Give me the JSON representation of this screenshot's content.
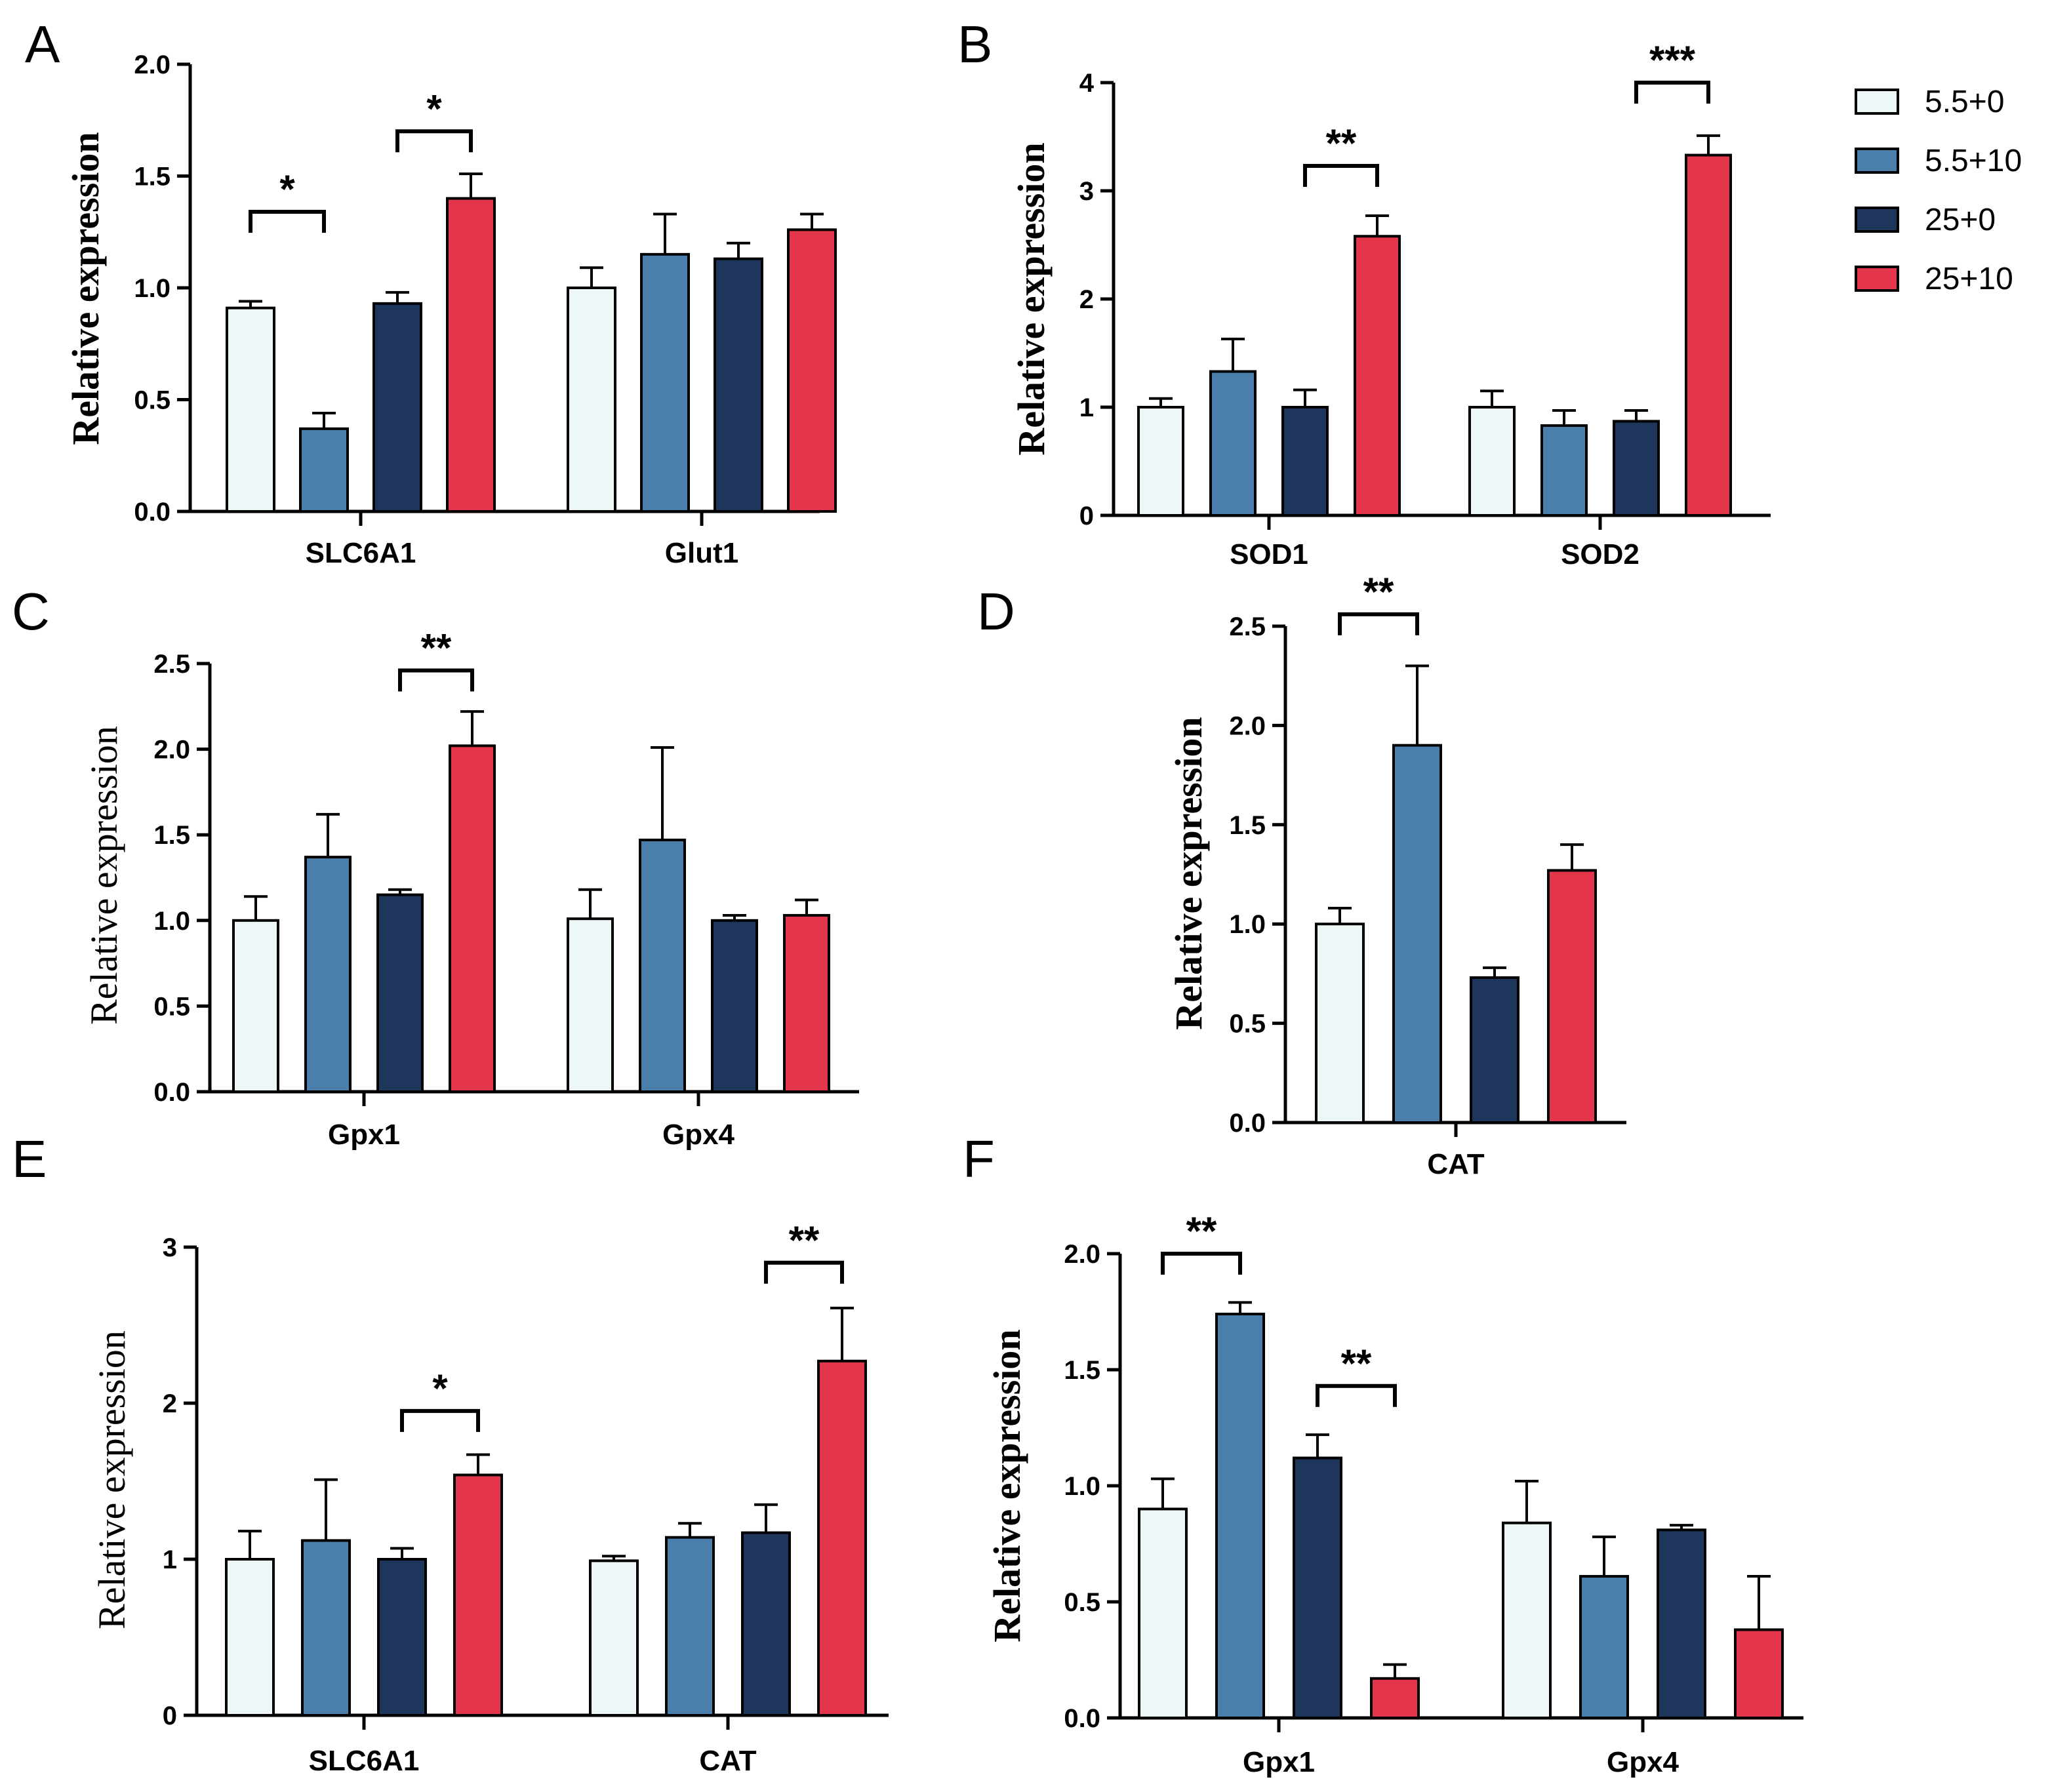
{
  "colors": {
    "5.5+0": "#eef7f8",
    "5.5+10": "#4a7eab",
    "25+0": "#1e355c",
    "25+10": "#e3364a"
  },
  "legend": {
    "placement": "top-right",
    "entries": [
      "5.5+0",
      "5.5+10",
      "25+0",
      "25+10"
    ]
  },
  "chart_data": [
    {
      "panel": "A",
      "type": "bar",
      "ylabel": "Relative expression",
      "ylabel_bold": true,
      "ylim": [
        0,
        2.0
      ],
      "yticks": [
        "0.0",
        "0.5",
        "1.0",
        "1.5",
        "2.0"
      ],
      "categories": [
        "SLC6A1",
        "Glut1"
      ],
      "series": [
        {
          "name": "5.5+0",
          "values": [
            0.91,
            1.0
          ],
          "errors": [
            0.03,
            0.09
          ]
        },
        {
          "name": "5.5+10",
          "values": [
            0.37,
            1.15
          ],
          "errors": [
            0.07,
            0.18
          ]
        },
        {
          "name": "25+0",
          "values": [
            0.93,
            1.13
          ],
          "errors": [
            0.05,
            0.07
          ]
        },
        {
          "name": "25+10",
          "values": [
            1.4,
            1.26
          ],
          "errors": [
            0.11,
            0.07
          ]
        }
      ],
      "annotations": [
        {
          "category": 0,
          "from": 0,
          "to": 1,
          "text": "*",
          "y": 1.34
        },
        {
          "category": 0,
          "from": 2,
          "to": 3,
          "text": "*",
          "y": 1.7
        }
      ]
    },
    {
      "panel": "B",
      "type": "bar",
      "ylabel": "Relative expression",
      "ylabel_bold": true,
      "ylim": [
        0,
        4
      ],
      "yticks": [
        "0",
        "1",
        "2",
        "3",
        "4"
      ],
      "categories": [
        "SOD1",
        "SOD2"
      ],
      "series": [
        {
          "name": "5.5+0",
          "values": [
            1.0,
            1.0
          ],
          "errors": [
            0.08,
            0.15
          ]
        },
        {
          "name": "5.5+10",
          "values": [
            1.33,
            0.83
          ],
          "errors": [
            0.3,
            0.14
          ]
        },
        {
          "name": "25+0",
          "values": [
            1.0,
            0.87
          ],
          "errors": [
            0.16,
            0.1
          ]
        },
        {
          "name": "25+10",
          "values": [
            2.58,
            3.33
          ],
          "errors": [
            0.19,
            0.18
          ]
        }
      ],
      "annotations": [
        {
          "category": 0,
          "from": 2,
          "to": 3,
          "text": "**",
          "y": 3.23
        },
        {
          "category": 1,
          "from": 2,
          "to": 3,
          "text": "***",
          "y": 4.0
        }
      ]
    },
    {
      "panel": "C",
      "type": "bar",
      "ylabel": "Relative expression",
      "ylabel_bold": false,
      "ylim": [
        0,
        2.5
      ],
      "yticks": [
        "0.0",
        "0.5",
        "1.0",
        "1.5",
        "2.0",
        "2.5"
      ],
      "categories": [
        "Gpx1",
        "Gpx4"
      ],
      "series": [
        {
          "name": "5.5+0",
          "values": [
            1.0,
            1.01
          ],
          "errors": [
            0.14,
            0.17
          ]
        },
        {
          "name": "5.5+10",
          "values": [
            1.37,
            1.47
          ],
          "errors": [
            0.25,
            0.54
          ]
        },
        {
          "name": "25+0",
          "values": [
            1.15,
            1.0
          ],
          "errors": [
            0.03,
            0.03
          ]
        },
        {
          "name": "25+10",
          "values": [
            2.02,
            1.03
          ],
          "errors": [
            0.2,
            0.09
          ]
        }
      ],
      "annotations": [
        {
          "category": 0,
          "from": 2,
          "to": 3,
          "text": "**",
          "y": 2.46
        }
      ]
    },
    {
      "panel": "D",
      "type": "bar",
      "ylabel": "Relative expression",
      "ylabel_bold": true,
      "ylim": [
        0,
        2.5
      ],
      "yticks": [
        "0.0",
        "0.5",
        "1.0",
        "1.5",
        "2.0",
        "2.5"
      ],
      "categories": [
        "CAT"
      ],
      "series": [
        {
          "name": "5.5+0",
          "values": [
            1.0
          ],
          "errors": [
            0.08
          ]
        },
        {
          "name": "5.5+10",
          "values": [
            1.9
          ],
          "errors": [
            0.4
          ]
        },
        {
          "name": "25+0",
          "values": [
            0.73
          ],
          "errors": [
            0.05
          ]
        },
        {
          "name": "25+10",
          "values": [
            1.27
          ],
          "errors": [
            0.13
          ]
        }
      ],
      "annotations": [
        {
          "category": 0,
          "from": 0,
          "to": 1,
          "text": "**",
          "y": 2.56
        }
      ]
    },
    {
      "panel": "E",
      "type": "bar",
      "ylabel": "Relative expression",
      "ylabel_bold": false,
      "ylim": [
        0,
        3
      ],
      "yticks": [
        "0",
        "1",
        "2",
        "3"
      ],
      "categories": [
        "SLC6A1",
        "CAT"
      ],
      "series": [
        {
          "name": "5.5+0",
          "values": [
            1.0,
            0.99
          ],
          "errors": [
            0.18,
            0.03
          ]
        },
        {
          "name": "5.5+10",
          "values": [
            1.12,
            1.14
          ],
          "errors": [
            0.39,
            0.09
          ]
        },
        {
          "name": "25+0",
          "values": [
            1.0,
            1.17
          ],
          "errors": [
            0.07,
            0.18
          ]
        },
        {
          "name": "25+10",
          "values": [
            1.54,
            2.27
          ],
          "errors": [
            0.13,
            0.34
          ]
        }
      ],
      "annotations": [
        {
          "category": 0,
          "from": 2,
          "to": 3,
          "text": "*",
          "y": 1.95
        },
        {
          "category": 1,
          "from": 2,
          "to": 3,
          "text": "**",
          "y": 2.9
        }
      ]
    },
    {
      "panel": "F",
      "type": "bar",
      "ylabel": "Relative expression",
      "ylabel_bold": true,
      "ylim": [
        0,
        2.0
      ],
      "yticks": [
        "0.0",
        "0.5",
        "1.0",
        "1.5",
        "2.0"
      ],
      "categories": [
        "Gpx1",
        "Gpx4"
      ],
      "series": [
        {
          "name": "5.5+0",
          "values": [
            0.9,
            0.84
          ],
          "errors": [
            0.13,
            0.18
          ]
        },
        {
          "name": "5.5+10",
          "values": [
            1.74,
            0.61
          ],
          "errors": [
            0.05,
            0.17
          ]
        },
        {
          "name": "25+0",
          "values": [
            1.12,
            0.81
          ],
          "errors": [
            0.1,
            0.02
          ]
        },
        {
          "name": "25+10",
          "values": [
            0.17,
            0.38
          ],
          "errors": [
            0.06,
            0.23
          ]
        }
      ],
      "annotations": [
        {
          "category": 0,
          "from": 0,
          "to": 1,
          "text": "**",
          "y": 2.0
        },
        {
          "category": 0,
          "from": 2,
          "to": 3,
          "text": "**",
          "y": 1.43
        }
      ]
    }
  ]
}
